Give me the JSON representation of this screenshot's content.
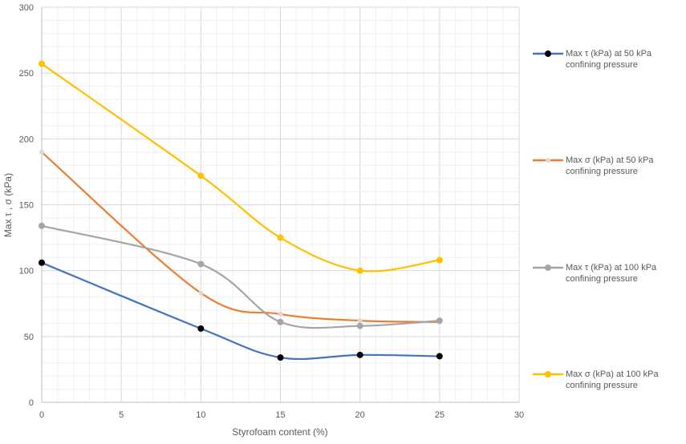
{
  "chart_data": {
    "type": "line",
    "xlabel": "Styrofoam content (%)",
    "ylabel": "Max τ , σ (kPa)",
    "xlim": [
      0,
      30
    ],
    "ylim": [
      0,
      300
    ],
    "xticks": [
      0,
      5,
      10,
      15,
      20,
      25,
      30
    ],
    "yticks": [
      0,
      50,
      100,
      150,
      200,
      250,
      300
    ],
    "grid": true,
    "minor_grid": true,
    "smoothed": true,
    "legend_placement": "right",
    "x": [
      0,
      10,
      15,
      20,
      25
    ],
    "series": [
      {
        "name": "Max τ (kPa) at 50 kPa confining pressure",
        "values": [
          106,
          56,
          34,
          36,
          35
        ],
        "color": "#4472C4",
        "marker_color": "#000000"
      },
      {
        "name": "Max σ (kPa) at 50 kPa confining pressure",
        "values": [
          190,
          83,
          67,
          62,
          61
        ],
        "color": "#ED7D31",
        "marker_color": "#D9D9D9"
      },
      {
        "name": "Max τ (kPa) at 100 kPa confining pressure",
        "values": [
          134,
          105,
          61,
          58,
          62
        ],
        "color": "#A5A5A5",
        "marker_color": "#A5A5A5"
      },
      {
        "name": "Max σ (kPa) at 100 kPa confining pressure",
        "values": [
          257,
          172,
          125,
          100,
          108
        ],
        "color": "#FFC000",
        "marker_color": "#FFC000"
      }
    ]
  }
}
